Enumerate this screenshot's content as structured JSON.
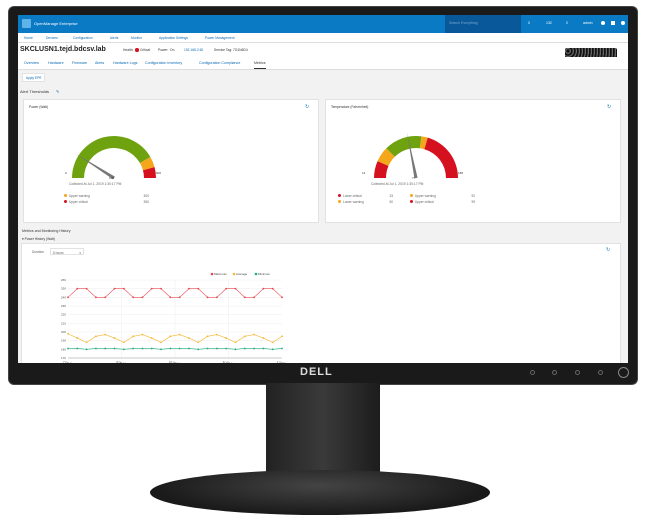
{
  "app": {
    "title": "OpenManage Enterprise",
    "search_placeholder": "Search Everything",
    "header_items": [
      {
        "icon": "alert-icon",
        "label": "0"
      },
      {
        "icon": "flag-icon",
        "label": "132"
      },
      {
        "icon": "jobs-icon",
        "label": "2"
      },
      {
        "icon": "user-icon",
        "label": "admin"
      }
    ]
  },
  "nav": [
    "Home",
    "Devices",
    "Configuration",
    "Alerts",
    "Monitor",
    "Application Settings",
    "Power Management"
  ],
  "device": {
    "name": "SKCLUSN1.tejd.bdcsv.lab",
    "health_label": "Health:",
    "health": "Critical",
    "power_label": "Power:",
    "power": "On",
    "ip": "192.168.2.60",
    "service_tag": "Service Tag: 7G1N6D4"
  },
  "tabs": [
    "Overview",
    "Hardware",
    "Firmware",
    "Alerts",
    "Hardware Logs",
    "Configuration Inventory",
    "Configuration Compliance",
    "Metrics"
  ],
  "active_tab": "Metrics",
  "apply_button": "Apply EPR",
  "alert_thresholds": "Alert Thresholds",
  "colors": {
    "green": "#6ea20f",
    "warning": "#f5a71c",
    "critical": "#d6111f",
    "brand": "#0a7ac4"
  },
  "power": {
    "title": "Power (Watt)",
    "min": "0",
    "max": "600",
    "value": "108",
    "collected": "Collected At   Jul 1, 2019 1:30:17 PM",
    "thresholds": [
      {
        "label": "Upper warning",
        "value": "500",
        "color": "#f5a71c"
      },
      {
        "label": "Upper critical",
        "value": "550",
        "color": "#d6111f"
      }
    ]
  },
  "temperature": {
    "title": "Temperature (Fahrenheit)",
    "min": "14",
    "max": "158",
    "value": "77",
    "collected": "Collected At   Jul 1, 2019 1:30:17 PM",
    "thresholds": [
      {
        "label": "Lower critical",
        "value": "33",
        "color": "#d6111f"
      },
      {
        "label": "Lower warning",
        "value": "50",
        "color": "#f5a71c"
      },
      {
        "label": "Upper warning",
        "value": "92",
        "color": "#f5a71c"
      },
      {
        "label": "Upper critical",
        "value": "99",
        "color": "#d6111f"
      }
    ]
  },
  "metrics": {
    "title": "Metrics and Monitoring History",
    "section": "Power History (Watt)",
    "duration_label": "Duration",
    "duration": "6 hours"
  },
  "chart_data": {
    "type": "line",
    "ylim": [
      170,
      260
    ],
    "yticks": [
      "260",
      "250",
      "240",
      "230",
      "220",
      "210",
      "200",
      "190",
      "180",
      "170"
    ],
    "xticks": [
      "7:00 AM",
      "9:00 AM",
      "10:00 AM",
      "11:00 AM",
      "1:00 PM"
    ],
    "legend": "top-right",
    "series": [
      {
        "name": "Maximum",
        "color": "#e8474f",
        "values": [
          240,
          250,
          250,
          240,
          240,
          250,
          250,
          240,
          240,
          250,
          250,
          240,
          240,
          250,
          250,
          240,
          240,
          250,
          250,
          240,
          240,
          250,
          250,
          240
        ]
      },
      {
        "name": "Average",
        "color": "#f5b733",
        "values": [
          198,
          193,
          188,
          195,
          197,
          193,
          188,
          195,
          197,
          193,
          188,
          195,
          197,
          193,
          188,
          195,
          197,
          193,
          188,
          195,
          197,
          193,
          188,
          195
        ]
      },
      {
        "name": "Minimum",
        "color": "#1fb07a",
        "values": [
          181,
          181,
          180,
          181,
          181,
          181,
          180,
          181,
          181,
          181,
          180,
          181,
          181,
          181,
          180,
          181,
          181,
          181,
          180,
          181,
          181,
          181,
          180,
          181
        ]
      }
    ]
  },
  "monitor": {
    "brand": "DELL"
  }
}
